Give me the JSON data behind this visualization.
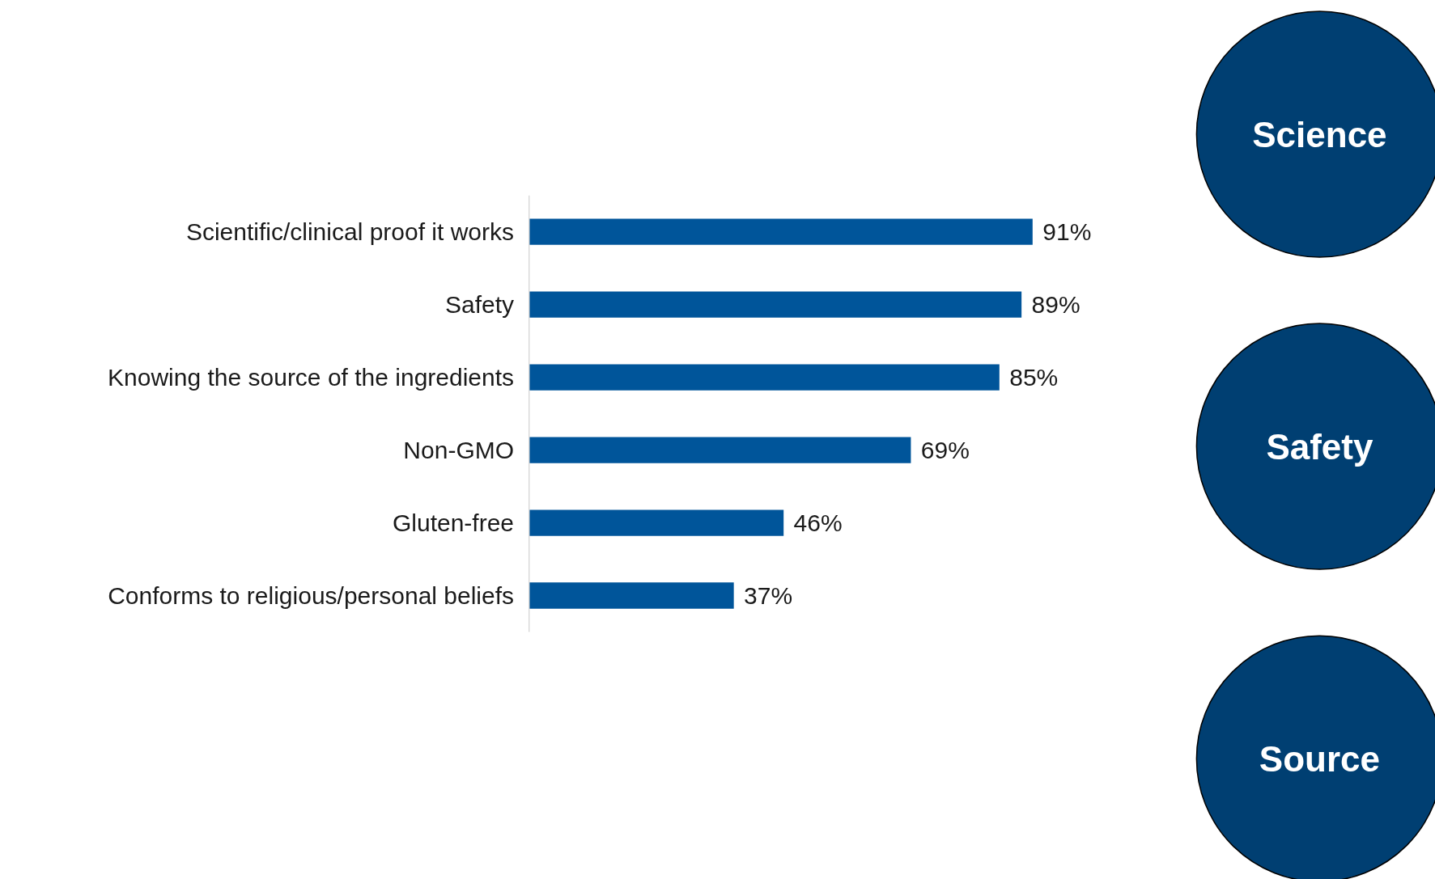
{
  "chart_data": {
    "type": "bar",
    "orientation": "horizontal",
    "categories": [
      "Scientific/clinical proof it works",
      "Safety",
      "Knowing the source of the ingredients",
      "Non-GMO",
      "Gluten-free",
      "Conforms to religious/personal beliefs"
    ],
    "values": [
      91,
      89,
      85,
      69,
      46,
      37
    ],
    "value_labels": [
      "91%",
      "89%",
      "85%",
      "69%",
      "46%",
      "37%"
    ],
    "color": "#00559a",
    "annotations": [
      "Science",
      "Safety",
      "Source"
    ]
  }
}
